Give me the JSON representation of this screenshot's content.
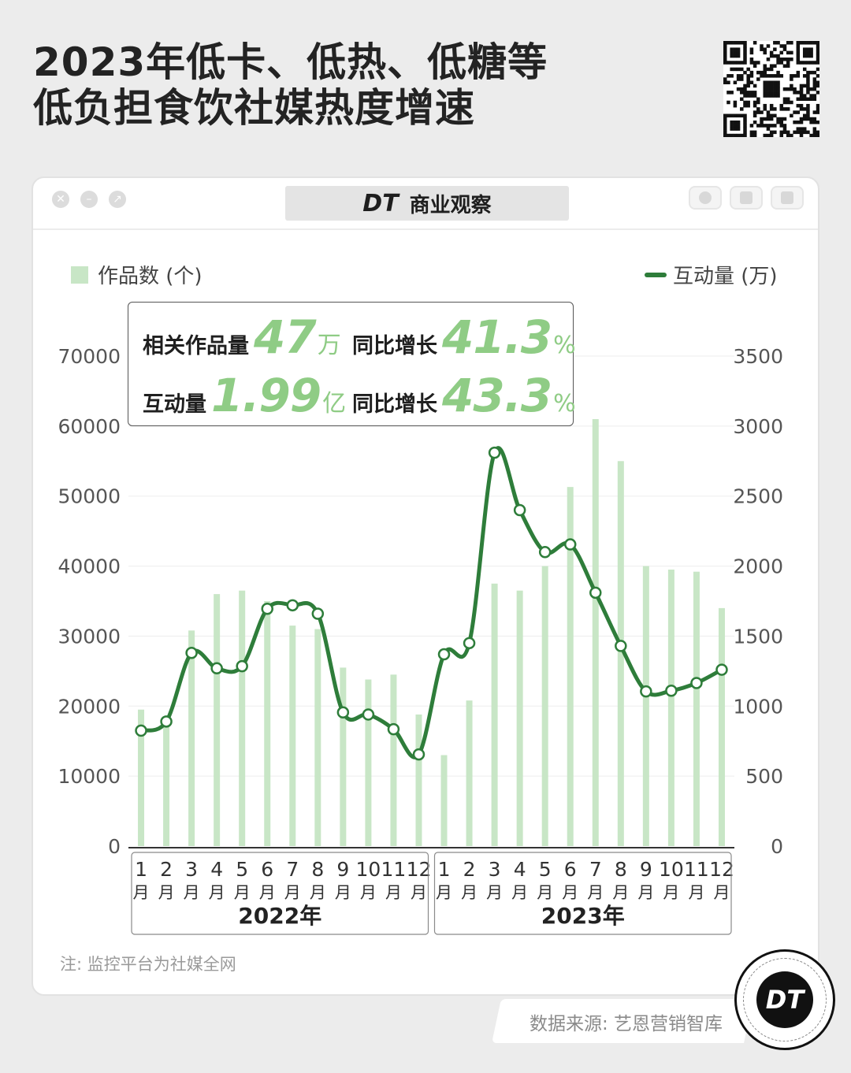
{
  "header": {
    "title_line1": "2023年低卡、低热、低糖等",
    "title_line2": "低负担食饮社媒热度增速"
  },
  "card": {
    "brand": "商业观察",
    "brand_mark": "DT"
  },
  "legend": {
    "bars": "作品数 (个)",
    "line": "互动量 (万)"
  },
  "stats": {
    "works_label": "相关作品量",
    "works_value": "47",
    "works_unit": "万",
    "works_yoy_label": "同比增长",
    "works_yoy_value": "41.3",
    "works_yoy_unit": "%",
    "inter_label": "互动量",
    "inter_value": "1.99",
    "inter_unit": "亿",
    "inter_yoy_label": "同比增长",
    "inter_yoy_value": "43.3",
    "inter_yoy_unit": "%"
  },
  "chart_data": {
    "type": "bar+line",
    "categories": [
      "1",
      "2",
      "3",
      "4",
      "5",
      "6",
      "7",
      "8",
      "9",
      "10",
      "11",
      "12",
      "1",
      "2",
      "3",
      "4",
      "5",
      "6",
      "7",
      "8",
      "9",
      "10",
      "11",
      "12"
    ],
    "category_suffix": "月",
    "groups": [
      {
        "label": "2022年",
        "start": 0,
        "end": 11
      },
      {
        "label": "2023年",
        "start": 12,
        "end": 23
      }
    ],
    "series": [
      {
        "name": "作品数 (个)",
        "type": "bar",
        "axis": "left",
        "values": [
          19500,
          17000,
          30800,
          36000,
          36500,
          35000,
          31500,
          31000,
          25500,
          23800,
          24500,
          18800,
          13000,
          20800,
          37500,
          36500,
          40000,
          51300,
          61000,
          55000,
          40000,
          39500,
          39200,
          34000
        ]
      },
      {
        "name": "互动量 (万)",
        "type": "line",
        "axis": "right",
        "values": [
          825,
          890,
          1380,
          1270,
          1285,
          1695,
          1720,
          1660,
          955,
          940,
          835,
          655,
          1370,
          1450,
          2810,
          2400,
          2100,
          2155,
          1810,
          1430,
          1105,
          1110,
          1165,
          1260
        ]
      }
    ],
    "y_left": {
      "min": 0,
      "max": 70000,
      "ticks": [
        "0",
        "10000",
        "20000",
        "30000",
        "40000",
        "50000",
        "60000",
        "70000"
      ]
    },
    "y_right": {
      "min": 0,
      "max": 3500,
      "ticks": [
        "0",
        "500",
        "1000",
        "1500",
        "2000",
        "2500",
        "3000",
        "3500"
      ]
    },
    "colors": {
      "bar": "#c8e6c6",
      "line": "#2e7d3a"
    }
  },
  "footer": {
    "note": "注: 监控平台为社媒全网",
    "source": "数据来源: 艺恩营销智库",
    "logo": "DT"
  }
}
